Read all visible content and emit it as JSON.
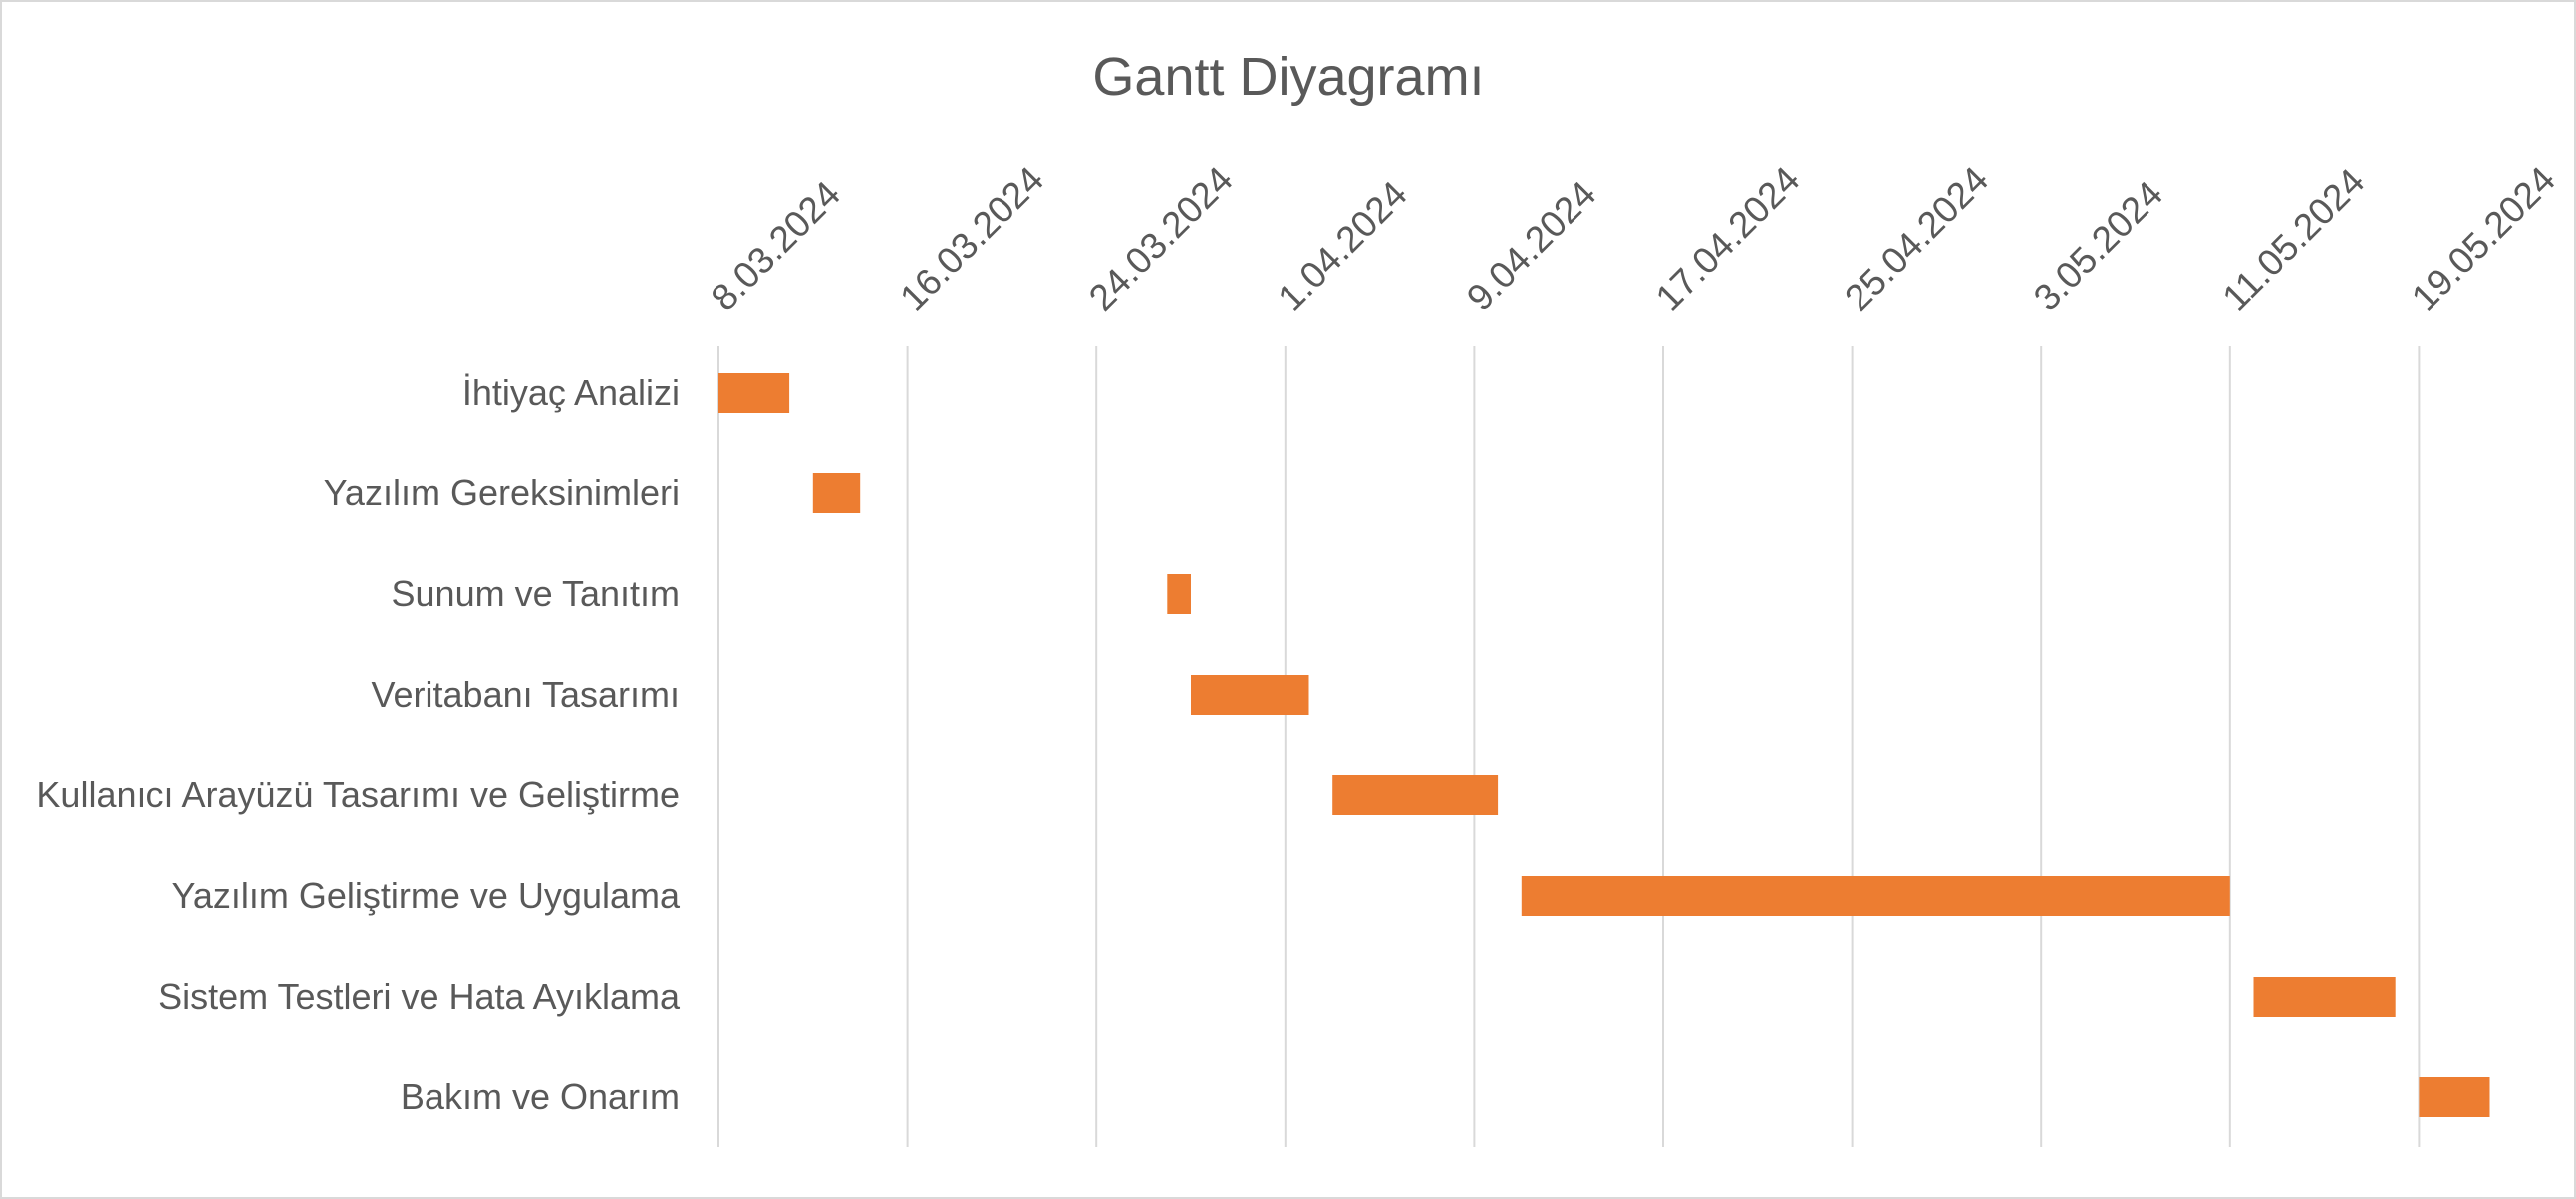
{
  "chart_data": {
    "type": "bar",
    "orientation": "horizontal",
    "subtype": "gantt",
    "title": "Gantt Diyagramı",
    "x_axis": {
      "position": "top",
      "ticks": [
        "8.03.2024",
        "16.03.2024",
        "24.03.2024",
        "1.04.2024",
        "9.04.2024",
        "17.04.2024",
        "25.04.2024",
        "3.05.2024",
        "11.05.2024",
        "19.05.2024"
      ],
      "range": [
        "8.03.2024",
        "23.05.2024"
      ],
      "grid": true
    },
    "categories": [
      "İhtiyaç Analizi",
      "Yazılım Gereksinimleri",
      "Sunum ve Tanıtım",
      "Veritabanı Tasarımı",
      "Kullanıcı Arayüzü Tasarımı ve Geliştirme",
      "Yazılım Geliştirme ve Uygulama ",
      "Sistem Testleri ve Hata Ayıklama",
      "Bakım ve Onarım"
    ],
    "tasks": [
      {
        "label": "İhtiyaç Analizi",
        "start": "2024-03-08",
        "end": "2024-03-11"
      },
      {
        "label": "Yazılım Gereksinimleri",
        "start": "2024-03-12",
        "end": "2024-03-14"
      },
      {
        "label": "Sunum ve Tanıtım",
        "start": "2024-03-27",
        "end": "2024-03-28"
      },
      {
        "label": "Veritabanı Tasarımı",
        "start": "2024-03-28",
        "end": "2024-04-02"
      },
      {
        "label": "Kullanıcı Arayüzü Tasarımı ve Geliştirme",
        "start": "2024-04-03",
        "end": "2024-04-10"
      },
      {
        "label": "Yazılım Geliştirme ve Uygulama ",
        "start": "2024-04-11",
        "end": "2024-05-11"
      },
      {
        "label": "Sistem Testleri ve Hata Ayıklama",
        "start": "2024-05-12",
        "end": "2024-05-18"
      },
      {
        "label": "Bakım ve Onarım",
        "start": "2024-05-19",
        "end": "2024-05-22"
      }
    ],
    "colors": {
      "bar": "#ED7D31",
      "grid": "#d9d9d9",
      "text": "#595959"
    }
  }
}
